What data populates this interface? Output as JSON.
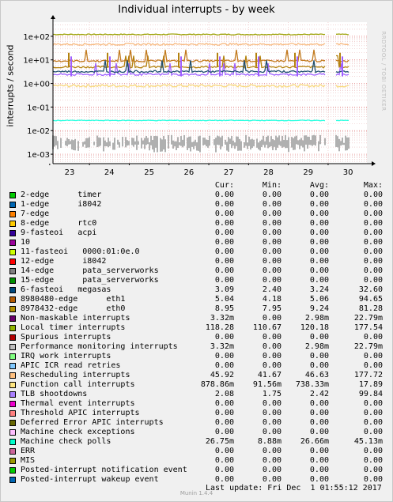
{
  "chart_data": {
    "type": "line",
    "title": "Individual interrupts - by week",
    "ylabel": "interrupts / second",
    "xlabel": "",
    "yscale": "log",
    "yticks": [
      "1e+02",
      "1e+01",
      "1e+00",
      "1e-01",
      "1e-02",
      "1e-03"
    ],
    "xticks": [
      "23",
      "24",
      "25",
      "26",
      "27",
      "28",
      "29",
      "30"
    ],
    "grid": true,
    "series": [
      {
        "name": "Local timer interrupts",
        "color": "#9fa40d",
        "level": 120
      },
      {
        "name": "Function call interrupts",
        "color": "#f8da80",
        "level": 0.8
      },
      {
        "name": "8980480-edge eth1",
        "color": "#b4820f",
        "level": 5
      },
      {
        "name": "8978432-edge eth0",
        "color": "#c27a1e",
        "level": 9
      },
      {
        "name": "Rescheduling interrupts",
        "color": "#f8ba80",
        "level": 46
      },
      {
        "name": "TLB shootdowns",
        "color": "#9f5fff",
        "level": 2.4
      },
      {
        "name": "6-fasteoi megasas",
        "color": "#1f4f6f",
        "level": 3.2
      },
      {
        "name": "Machine check polls",
        "color": "#2affe0",
        "level": 0.027
      },
      {
        "name": "Non-maskable interrupts",
        "color": "#b0b0b0",
        "level": 0.003
      }
    ]
  },
  "legend_headers": {
    "cur": "Cur:",
    "min": "Min:",
    "avg": "Avg:",
    "max": "Max:"
  },
  "legend": [
    {
      "label": "2-edge      timer",
      "color": "#00cc00",
      "cur": "0.00",
      "min": "0.00",
      "avg": "0.00",
      "max": "0.00"
    },
    {
      "label": "1-edge      i8042",
      "color": "#0066b3",
      "cur": "0.00",
      "min": "0.00",
      "avg": "0.00",
      "max": "0.00"
    },
    {
      "label": "7-edge",
      "color": "#ff8000",
      "cur": "0.00",
      "min": "0.00",
      "avg": "0.00",
      "max": "0.00"
    },
    {
      "label": "8-edge      rtc0",
      "color": "#ffcc00",
      "cur": "0.00",
      "min": "0.00",
      "avg": "0.00",
      "max": "0.00"
    },
    {
      "label": "9-fasteoi   acpi",
      "color": "#330099",
      "cur": "0.00",
      "min": "0.00",
      "avg": "0.00",
      "max": "0.00"
    },
    {
      "label": "10",
      "color": "#990099",
      "cur": "0.00",
      "min": "0.00",
      "avg": "0.00",
      "max": "0.00"
    },
    {
      "label": "11-fasteoi   0000:01:0e.0",
      "color": "#ccff00",
      "cur": "0.00",
      "min": "0.00",
      "avg": "0.00",
      "max": "0.00"
    },
    {
      "label": "12-edge      i8042",
      "color": "#ff0000",
      "cur": "0.00",
      "min": "0.00",
      "avg": "0.00",
      "max": "0.00"
    },
    {
      "label": "14-edge      pata_serverworks",
      "color": "#808080",
      "cur": "0.00",
      "min": "0.00",
      "avg": "0.00",
      "max": "0.00"
    },
    {
      "label": "15-edge      pata_serverworks",
      "color": "#008f00",
      "cur": "0.00",
      "min": "0.00",
      "avg": "0.00",
      "max": "0.00"
    },
    {
      "label": "6-fasteoi   megasas",
      "color": "#00487d",
      "cur": "3.09",
      "min": "2.40",
      "avg": "3.24",
      "max": "32.60"
    },
    {
      "label": "8980480-edge      eth1",
      "color": "#b35a00",
      "cur": "5.04",
      "min": "4.18",
      "avg": "5.06",
      "max": "94.65"
    },
    {
      "label": "8978432-edge      eth0",
      "color": "#b38f00",
      "cur": "8.95",
      "min": "7.95",
      "avg": "9.24",
      "max": "81.28"
    },
    {
      "label": "Non-maskable interrupts",
      "color": "#6b006b",
      "cur": "3.32m",
      "min": "0.00",
      "avg": "2.98m",
      "max": "22.79m"
    },
    {
      "label": "Local timer interrupts",
      "color": "#8fb300",
      "cur": "118.28",
      "min": "110.67",
      "avg": "120.18",
      "max": "177.54"
    },
    {
      "label": "Spurious interrupts",
      "color": "#b30000",
      "cur": "0.00",
      "min": "0.00",
      "avg": "0.00",
      "max": "0.00"
    },
    {
      "label": "Performance monitoring interrupts",
      "color": "#bebebe",
      "cur": "3.32m",
      "min": "0.00",
      "avg": "2.98m",
      "max": "22.79m"
    },
    {
      "label": "IRQ work interrupts",
      "color": "#80ff80",
      "cur": "0.00",
      "min": "0.00",
      "avg": "0.00",
      "max": "0.00"
    },
    {
      "label": "APIC ICR read retries",
      "color": "#80c9ff",
      "cur": "0.00",
      "min": "0.00",
      "avg": "0.00",
      "max": "0.00"
    },
    {
      "label": "Rescheduling interrupts",
      "color": "#ffc080",
      "cur": "45.92",
      "min": "41.67",
      "avg": "46.63",
      "max": "177.72"
    },
    {
      "label": "Function call interrupts",
      "color": "#ffe680",
      "cur": "878.86m",
      "min": "91.56m",
      "avg": "738.33m",
      "max": "17.89"
    },
    {
      "label": "TLB shootdowns",
      "color": "#aa80ff",
      "cur": "2.08",
      "min": "1.75",
      "avg": "2.42",
      "max": "99.84"
    },
    {
      "label": "Thermal event interrupts",
      "color": "#ee00cc",
      "cur": "0.00",
      "min": "0.00",
      "avg": "0.00",
      "max": "0.00"
    },
    {
      "label": "Threshold APIC interrupts",
      "color": "#ff8080",
      "cur": "0.00",
      "min": "0.00",
      "avg": "0.00",
      "max": "0.00"
    },
    {
      "label": "Deferred Error APIC interrupts",
      "color": "#666600",
      "cur": "0.00",
      "min": "0.00",
      "avg": "0.00",
      "max": "0.00"
    },
    {
      "label": "Machine check exceptions",
      "color": "#ffbfff",
      "cur": "0.00",
      "min": "0.00",
      "avg": "0.00",
      "max": "0.00"
    },
    {
      "label": "Machine check polls",
      "color": "#00ffcc",
      "cur": "26.75m",
      "min": "8.88m",
      "avg": "26.66m",
      "max": "45.13m"
    },
    {
      "label": "ERR",
      "color": "#cc6699",
      "cur": "0.00",
      "min": "0.00",
      "avg": "0.00",
      "max": "0.00"
    },
    {
      "label": "MIS",
      "color": "#999900",
      "cur": "0.00",
      "min": "0.00",
      "avg": "0.00",
      "max": "0.00"
    },
    {
      "label": "Posted-interrupt notification event",
      "color": "#00cc00",
      "cur": "0.00",
      "min": "0.00",
      "avg": "0.00",
      "max": "0.00"
    },
    {
      "label": "Posted-interrupt wakeup event",
      "color": "#0066b3",
      "cur": "0.00",
      "min": "0.00",
      "avg": "0.00",
      "max": "0.00"
    }
  ],
  "footer": {
    "last_update": "Last update: Fri Dec  1 01:55:12 2017",
    "munin": "Munin 1.4.4"
  },
  "watermark": "RRDTOOL / TOBI OETIKER"
}
